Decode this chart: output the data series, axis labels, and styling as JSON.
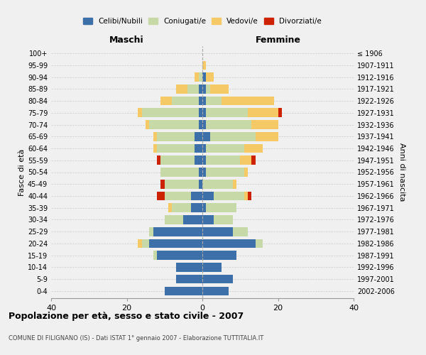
{
  "age_groups": [
    "0-4",
    "5-9",
    "10-14",
    "15-19",
    "20-24",
    "25-29",
    "30-34",
    "35-39",
    "40-44",
    "45-49",
    "50-54",
    "55-59",
    "60-64",
    "65-69",
    "70-74",
    "75-79",
    "80-84",
    "85-89",
    "90-94",
    "95-99",
    "100+"
  ],
  "birth_years": [
    "2002-2006",
    "1997-2001",
    "1992-1996",
    "1987-1991",
    "1982-1986",
    "1977-1981",
    "1972-1976",
    "1967-1971",
    "1962-1966",
    "1957-1961",
    "1952-1956",
    "1947-1951",
    "1942-1946",
    "1937-1941",
    "1932-1936",
    "1927-1931",
    "1922-1926",
    "1917-1921",
    "1912-1916",
    "1907-1911",
    "≤ 1906"
  ],
  "maschi": {
    "celibi": [
      10,
      7,
      7,
      12,
      14,
      13,
      5,
      3,
      3,
      1,
      1,
      2,
      2,
      2,
      1,
      1,
      1,
      1,
      0,
      0,
      0
    ],
    "coniugati": [
      0,
      0,
      0,
      1,
      2,
      1,
      5,
      5,
      7,
      9,
      10,
      9,
      10,
      10,
      13,
      15,
      7,
      3,
      1,
      0,
      0
    ],
    "vedovi": [
      0,
      0,
      0,
      0,
      1,
      0,
      0,
      1,
      0,
      0,
      0,
      0,
      1,
      1,
      1,
      1,
      3,
      3,
      1,
      0,
      0
    ],
    "divorziati": [
      0,
      0,
      0,
      0,
      0,
      0,
      0,
      0,
      2,
      1,
      0,
      1,
      0,
      0,
      0,
      0,
      0,
      0,
      0,
      0,
      0
    ]
  },
  "femmine": {
    "nubili": [
      7,
      8,
      5,
      9,
      14,
      8,
      3,
      1,
      3,
      0,
      1,
      1,
      1,
      2,
      1,
      1,
      1,
      1,
      1,
      0,
      0
    ],
    "coniugate": [
      0,
      0,
      0,
      0,
      2,
      4,
      5,
      8,
      8,
      8,
      10,
      9,
      10,
      12,
      12,
      11,
      4,
      1,
      0,
      0,
      0
    ],
    "vedove": [
      0,
      0,
      0,
      0,
      0,
      0,
      0,
      0,
      1,
      1,
      1,
      3,
      5,
      6,
      7,
      8,
      14,
      5,
      2,
      1,
      0
    ],
    "divorziate": [
      0,
      0,
      0,
      0,
      0,
      0,
      0,
      0,
      1,
      0,
      0,
      1,
      0,
      0,
      0,
      1,
      0,
      0,
      0,
      0,
      0
    ]
  },
  "color_celibi": "#3d6fa8",
  "color_coniugati": "#c8d9a8",
  "color_vedovi": "#f5c965",
  "color_divorziati": "#cc2200",
  "xlim": 40,
  "title": "Popolazione per età, sesso e stato civile - 2007",
  "subtitle": "COMUNE DI FILIGNANO (IS) - Dati ISTAT 1° gennaio 2007 - Elaborazione TUTTITALIA.IT",
  "ylabel_left": "Fasce di età",
  "ylabel_right": "Anni di nascita",
  "xlabel_maschi": "Maschi",
  "xlabel_femmine": "Femmine",
  "background_color": "#f0f0f0",
  "bar_height": 0.75
}
